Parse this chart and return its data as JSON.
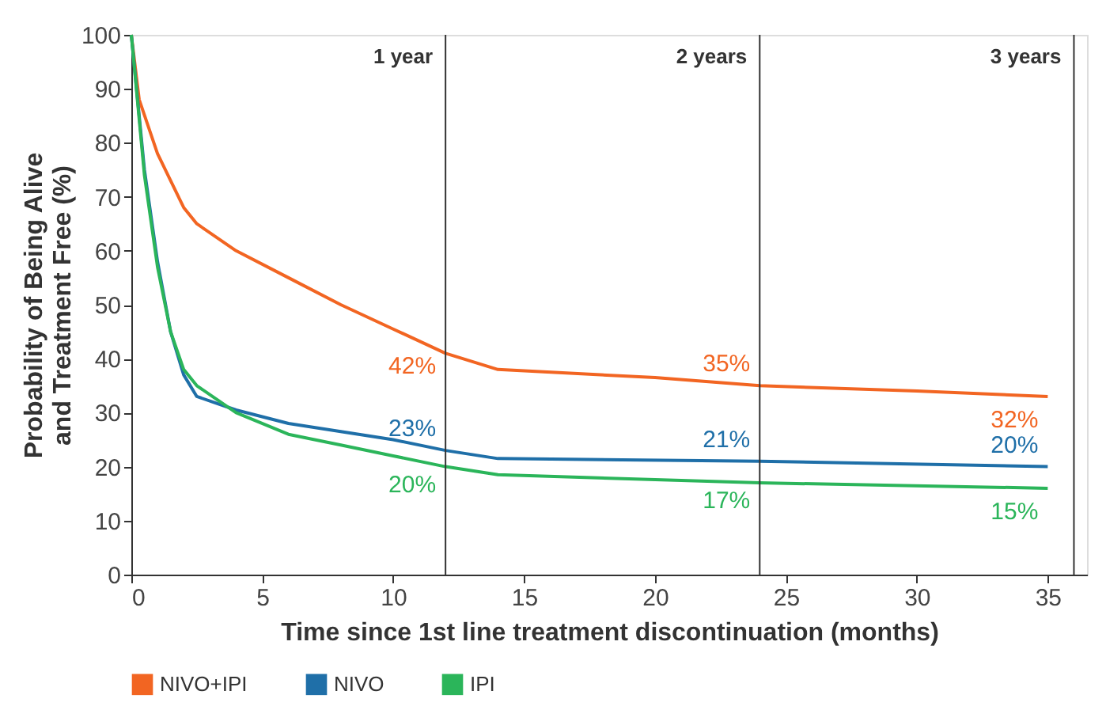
{
  "chart_data": {
    "type": "line",
    "xlabel": "Time since 1st line treatment discontinuation (months)",
    "ylabel": "Probability of Being Alive\nand Treatment Free (%)",
    "xlim": [
      0,
      36.5
    ],
    "xticks": [
      0,
      5,
      10,
      15,
      20,
      25,
      30,
      35
    ],
    "ylim": [
      0,
      100
    ],
    "yticks": [
      0,
      10,
      20,
      30,
      40,
      50,
      60,
      70,
      80,
      90,
      100
    ],
    "grid": false,
    "legend": "bottom",
    "marker": "none",
    "line_style": "solid",
    "series": [
      {
        "name": "NIVO+IPI",
        "color": "#f26522",
        "x": [
          0,
          0.3,
          1,
          2,
          2.5,
          4,
          6,
          8,
          10,
          12,
          14,
          20,
          24,
          30,
          35
        ],
        "values": [
          100,
          88,
          78,
          68,
          65,
          60,
          55,
          50,
          45.5,
          41,
          38,
          36.5,
          35,
          34,
          33
        ]
      },
      {
        "name": "NIVO",
        "color": "#1f6fa8",
        "x": [
          0,
          0.5,
          1,
          1.5,
          2,
          2.5,
          4,
          6,
          8,
          10,
          12,
          14,
          24,
          35
        ],
        "values": [
          100,
          75,
          58,
          45,
          37,
          33,
          30.5,
          28,
          26.5,
          25,
          23,
          21.5,
          21,
          20
        ]
      },
      {
        "name": "IPI",
        "color": "#2bb55a",
        "x": [
          0,
          0.5,
          1,
          1.5,
          2,
          2.5,
          4,
          6,
          8,
          10,
          12,
          14,
          24,
          35
        ],
        "values": [
          100,
          74,
          57,
          45,
          38,
          35,
          30,
          26,
          24,
          22,
          20,
          18.5,
          17,
          16
        ]
      }
    ],
    "ref_lines": [
      {
        "axis": "x",
        "value": 12,
        "label": "1 year",
        "color": "#333333"
      },
      {
        "axis": "x",
        "value": 24,
        "label": "2 years",
        "color": "#333333"
      },
      {
        "axis": "x",
        "value": 36,
        "label": "3 years",
        "color": "#333333"
      }
    ],
    "annotations": [
      {
        "text": "42%",
        "x": 12,
        "y": 42
      },
      {
        "text": "23%",
        "x": 12,
        "y": 23
      },
      {
        "text": "20%",
        "x": 12,
        "y": 20
      },
      {
        "text": "35%",
        "x": 24,
        "y": 35
      },
      {
        "text": "21%",
        "x": 24,
        "y": 21
      },
      {
        "text": "17%",
        "x": 24,
        "y": 17
      },
      {
        "text": "32%",
        "x": 35,
        "y": 32
      },
      {
        "text": "20%",
        "x": 35,
        "y": 20
      },
      {
        "text": "15%",
        "x": 35,
        "y": 15
      }
    ]
  }
}
